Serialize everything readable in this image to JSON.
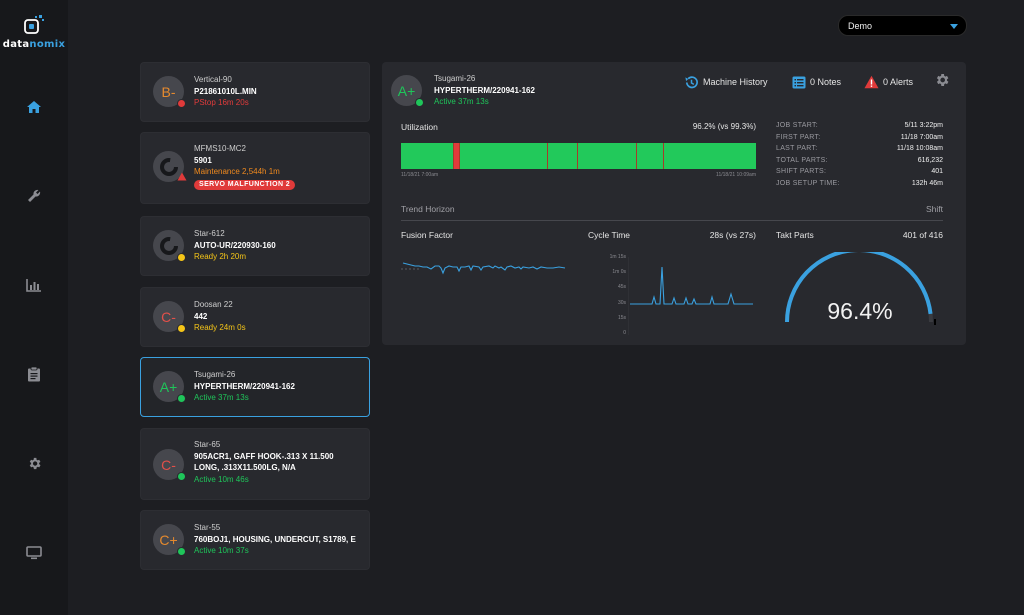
{
  "brand": {
    "logo_text_a": "data",
    "logo_text_b": "nomix"
  },
  "demo_select": {
    "value": "Demo"
  },
  "colors": {
    "accent": "#3aa1e0",
    "green": "#1fc55a",
    "red": "#e03a3a",
    "yellow": "#f5c518",
    "orange": "#f08a1e"
  },
  "sidebar": {
    "items": [
      "home-icon",
      "wrench-icon",
      "chart-icon",
      "clipboard-icon",
      "gear-icon",
      "monitor-icon"
    ]
  },
  "machines": [
    {
      "grade": "B-",
      "grade_color": "#e58a2e",
      "name": "Vertical-90",
      "job": "P21861010L.MIN",
      "status": "PStop 16m 20s",
      "status_color": "#e23b3b",
      "dot": "#e03a3a"
    },
    {
      "grade": "",
      "name": "MFMS10-MC2",
      "job": "5901",
      "status": "Maintenance 2,544h 1m",
      "status_color": "#f08a1e",
      "alarm": "SERVO MALFUNCTION 2"
    },
    {
      "grade": "",
      "name": "Star-612",
      "job": "AUTO-UR/220930-160",
      "status": "Ready 2h 20m",
      "status_color": "#f5c518",
      "dot": "#f5c518"
    },
    {
      "grade": "C-",
      "grade_color": "#e2504a",
      "name": "Doosan 22",
      "job": "442",
      "status": "Ready 24m 0s",
      "status_color": "#f5c518",
      "dot": "#f5c518"
    },
    {
      "grade": "A+",
      "grade_color": "#1fc55a",
      "name": "Tsugami-26",
      "job": "HYPERTHERM/220941-162",
      "status": "Active 37m 13s",
      "status_color": "#1fc55a",
      "dot": "#1fc55a"
    },
    {
      "grade": "C-",
      "grade_color": "#e2504a",
      "name": "Star-65",
      "job": "905ACR1, GAFF HOOK-.313 X 11.500",
      "job2": "LONG, .313X11.500LG, N/A",
      "status": "Active 10m 46s",
      "status_color": "#1fc55a",
      "dot": "#1fc55a"
    },
    {
      "grade": "C+",
      "grade_color": "#e58a2e",
      "name": "Star-55",
      "job": "760BOJ1, HOUSING, UNDERCUT, S1789, E",
      "status": "Active 10m 37s",
      "status_color": "#1fc55a",
      "dot": "#1fc55a"
    }
  ],
  "detail": {
    "grade": "A+",
    "name": "Tsugami-26",
    "job": "HYPERTHERM/220941-162",
    "status": "Active 37m 13s",
    "machine_history": "Machine History",
    "notes": "0 Notes",
    "alerts": "0 Alerts",
    "utilization": {
      "label": "Utilization",
      "value": "96.2% (vs 99.3%)",
      "start_time": "11/18/21 7:00am",
      "end_time": "11/18/21 10:09am",
      "segments": [
        {
          "frac": 0.146,
          "state": "active"
        },
        {
          "frac": 0.018,
          "state": "down"
        },
        {
          "frac": 0.836,
          "state": "active"
        }
      ],
      "dividers": [
        0.146,
        0.164,
        0.41,
        0.495,
        0.663,
        0.737
      ]
    },
    "stats": [
      {
        "k": "JOB START:",
        "v": "5/11 3:22pm"
      },
      {
        "k": "FIRST PART:",
        "v": "11/18 7:00am"
      },
      {
        "k": "LAST PART:",
        "v": "11/18 10:08am"
      },
      {
        "k": "TOTAL PARTS:",
        "v": "616,232"
      },
      {
        "k": "SHIFT PARTS:",
        "v": "401"
      },
      {
        "k": "JOB SETUP TIME:",
        "v": "132h 46m"
      }
    ],
    "trend_horizon": "Trend Horizon",
    "shift_label": "Shift",
    "fusion_factor": "Fusion Factor",
    "cycle_time": {
      "label": "Cycle Time",
      "value": "28s (vs 27s)",
      "y_ticks": [
        "1m 15s",
        "1m 0s",
        "45s",
        "30s",
        "15s",
        "0"
      ]
    },
    "takt": {
      "label": "Takt Parts",
      "value": "401 of 416",
      "percent": "96.4%",
      "fraction": 0.964
    }
  }
}
